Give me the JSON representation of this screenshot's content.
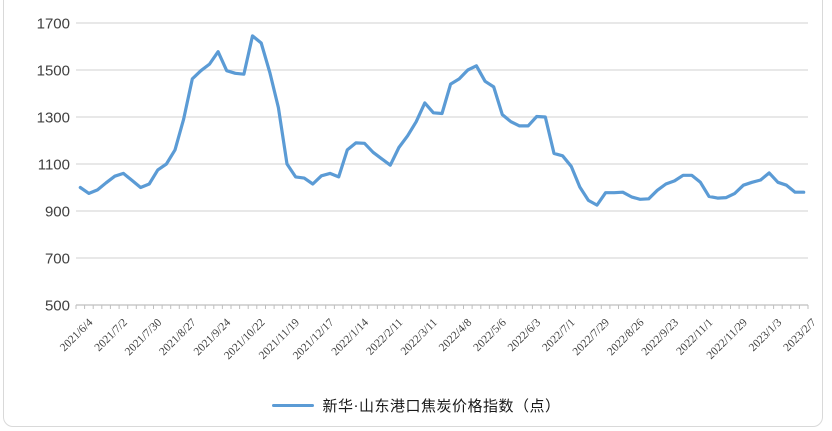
{
  "colors": {
    "background": "#ffffff",
    "line": "#5b9bd5",
    "gridline": "#d9d9d9",
    "axis": "#bfbfbf",
    "tick_label": "#404040",
    "frame_border": "#d9d9d9"
  },
  "legend": {
    "label": "新华·山东港口焦炭价格指数（点）"
  },
  "chart_data": {
    "type": "line",
    "title": "",
    "xlabel": "",
    "ylabel": "",
    "ylim": [
      500,
      1700
    ],
    "y_ticks": [
      1700,
      1500,
      1300,
      1100,
      900,
      700,
      500
    ],
    "grid": true,
    "legend_position": "bottom",
    "x_label_interval": 4,
    "x_label_rotation_deg": 45,
    "x_labels": [
      "2021/6/4",
      "2021/7/2",
      "2021/7/30",
      "2021/8/27",
      "2021/9/24",
      "2021/10/22",
      "2021/11/19",
      "2021/12/17",
      "2022/1/14",
      "2022/2/11",
      "2022/3/11",
      "2022/4/8",
      "2022/5/6",
      "2022/6/3",
      "2022/7/1",
      "2022/7/29",
      "2022/8/26",
      "2022/9/23",
      "2022/11/1",
      "2022/11/29",
      "2023/1/3",
      "2023/2/7"
    ],
    "series": [
      {
        "name": "新华·山东港口焦炭价格指数（点）",
        "values": [
          1000,
          975,
          990,
          1020,
          1048,
          1060,
          1030,
          1000,
          1015,
          1075,
          1100,
          1160,
          1290,
          1462,
          1497,
          1525,
          1578,
          1497,
          1486,
          1482,
          1645,
          1615,
          1490,
          1340,
          1100,
          1045,
          1040,
          1015,
          1050,
          1060,
          1045,
          1160,
          1190,
          1188,
          1150,
          1122,
          1095,
          1170,
          1220,
          1280,
          1360,
          1318,
          1315,
          1440,
          1462,
          1500,
          1518,
          1452,
          1428,
          1310,
          1280,
          1262,
          1262,
          1302,
          1300,
          1145,
          1135,
          1090,
          1002,
          945,
          925,
          978,
          978,
          980,
          960,
          950,
          952,
          988,
          1015,
          1028,
          1052,
          1052,
          1022,
          962,
          955,
          957,
          975,
          1010,
          1022,
          1032,
          1062,
          1022,
          1010,
          980,
          980
        ]
      }
    ]
  }
}
